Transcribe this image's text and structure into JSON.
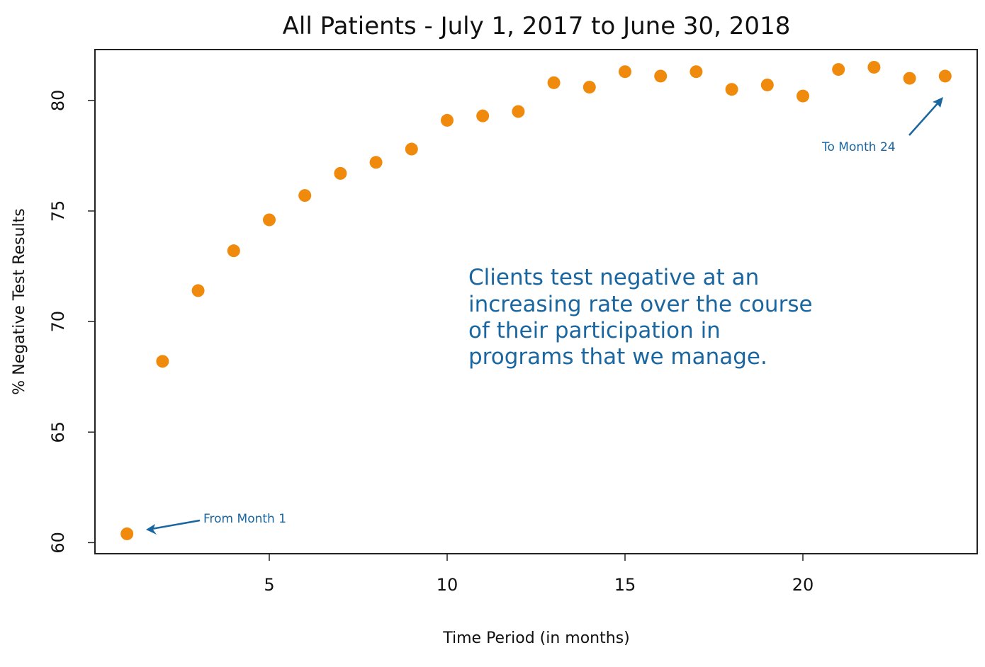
{
  "chart_data": {
    "type": "scatter",
    "title": "All Patients - July 1, 2017 to June 30, 2018",
    "xlabel": "Time Period (in months)",
    "ylabel": "% Negative Test Results",
    "xlim": [
      0.1,
      24.9
    ],
    "ylim": [
      59.5,
      82.3
    ],
    "x_ticks": [
      5,
      10,
      15,
      20
    ],
    "x_tick_labels": [
      "5",
      "10",
      "15",
      "20"
    ],
    "y_ticks": [
      60,
      65,
      70,
      75,
      80
    ],
    "y_tick_labels": [
      "60",
      "65",
      "70",
      "75",
      "80"
    ],
    "grid": false,
    "x": [
      1,
      2,
      3,
      4,
      5,
      6,
      7,
      8,
      9,
      10,
      11,
      12,
      13,
      14,
      15,
      16,
      17,
      18,
      19,
      20,
      21,
      22,
      23,
      24
    ],
    "y": [
      60.4,
      68.2,
      71.4,
      73.2,
      74.6,
      75.7,
      76.7,
      77.2,
      77.8,
      79.1,
      79.3,
      79.5,
      80.8,
      80.6,
      81.3,
      81.1,
      81.3,
      80.5,
      80.7,
      80.2,
      81.4,
      81.5,
      81.0,
      81.1
    ],
    "point_color": "#ef8a0c",
    "annotations": {
      "from_label": "From Month 1",
      "to_label": "To Month 24",
      "callout_lines": [
        "Clients test negative at an",
        "increasing rate over the course",
        "of their participation in",
        "programs that we manage."
      ],
      "color": "#1a66a0"
    }
  }
}
